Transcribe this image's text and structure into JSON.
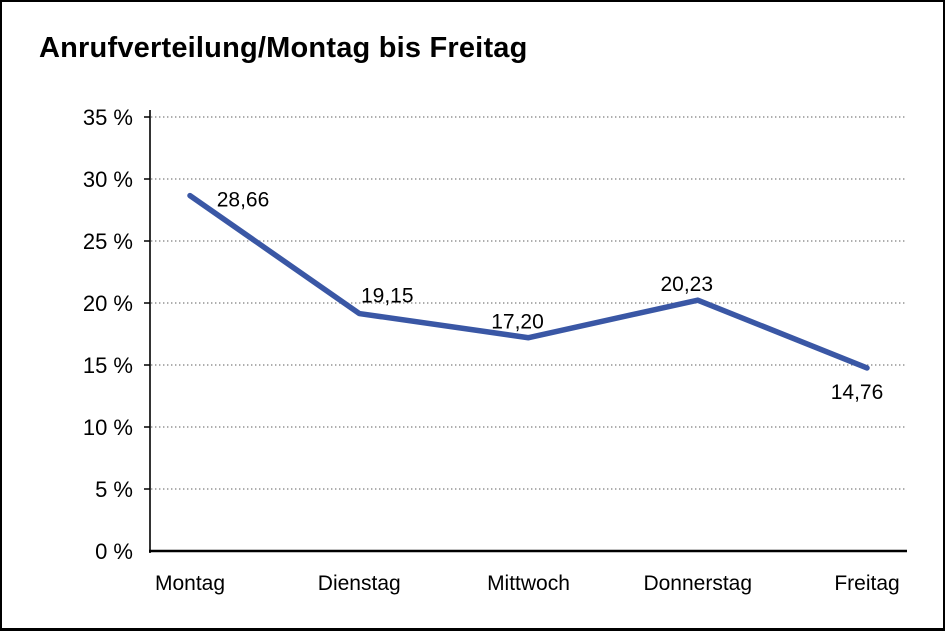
{
  "window": {
    "background": "#ffffff",
    "frame_color": "#000000"
  },
  "chart_data": {
    "type": "line",
    "title": "Anrufverteilung/Montag bis Freitag",
    "categories": [
      "Montag",
      "Dienstag",
      "Mittwoch",
      "Donnerstag",
      "Freitag"
    ],
    "values": [
      28.66,
      19.15,
      17.2,
      20.23,
      14.76
    ],
    "point_labels": [
      "28,66",
      "19,15",
      "17,20",
      "20,23",
      "14,76"
    ],
    "xlabel": "",
    "ylabel": "",
    "ylim": [
      0,
      35
    ],
    "y_tick_step": 5,
    "y_ticks": [
      0,
      5,
      10,
      15,
      20,
      25,
      30,
      35
    ],
    "y_tick_labels": [
      "0 %",
      "5 %",
      "10 %",
      "15 %",
      "20 %",
      "25 %",
      "30 %",
      "35 %"
    ],
    "grid": "horizontal-dotted",
    "legend": "none",
    "series_color": "#3A57A5",
    "gridline_color": "#7d7d7d",
    "axis_color": "#000000",
    "text_color": "#000000"
  }
}
